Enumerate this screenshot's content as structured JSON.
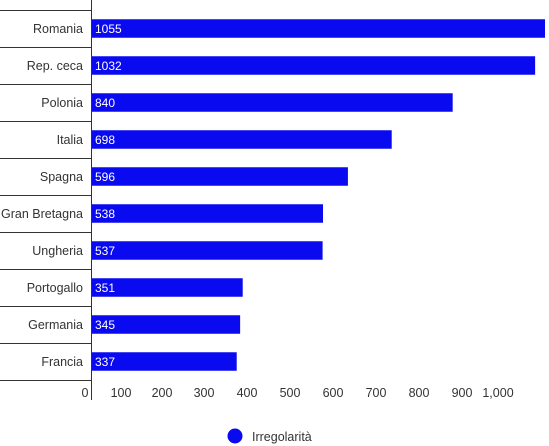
{
  "chart_data": {
    "type": "bar",
    "orientation": "horizontal",
    "categories": [
      "Romania",
      "Rep. ceca",
      "Polonia",
      "Italia",
      "Spagna",
      "Gran Bretagna",
      "Ungheria",
      "Portogallo",
      "Germania",
      "Francia"
    ],
    "series": [
      {
        "name": "Irregolarità",
        "values": [
          1055,
          1032,
          840,
          698,
          596,
          538,
          537,
          351,
          345,
          337
        ],
        "color": "#0a0af0"
      }
    ],
    "x_ticks": [
      "0",
      "100",
      "200",
      "300",
      "400",
      "500",
      "600",
      "700",
      "800",
      "900",
      "1,000"
    ],
    "xlim": [
      0,
      1055
    ],
    "grid": false,
    "legend_position": "bottom-center"
  }
}
